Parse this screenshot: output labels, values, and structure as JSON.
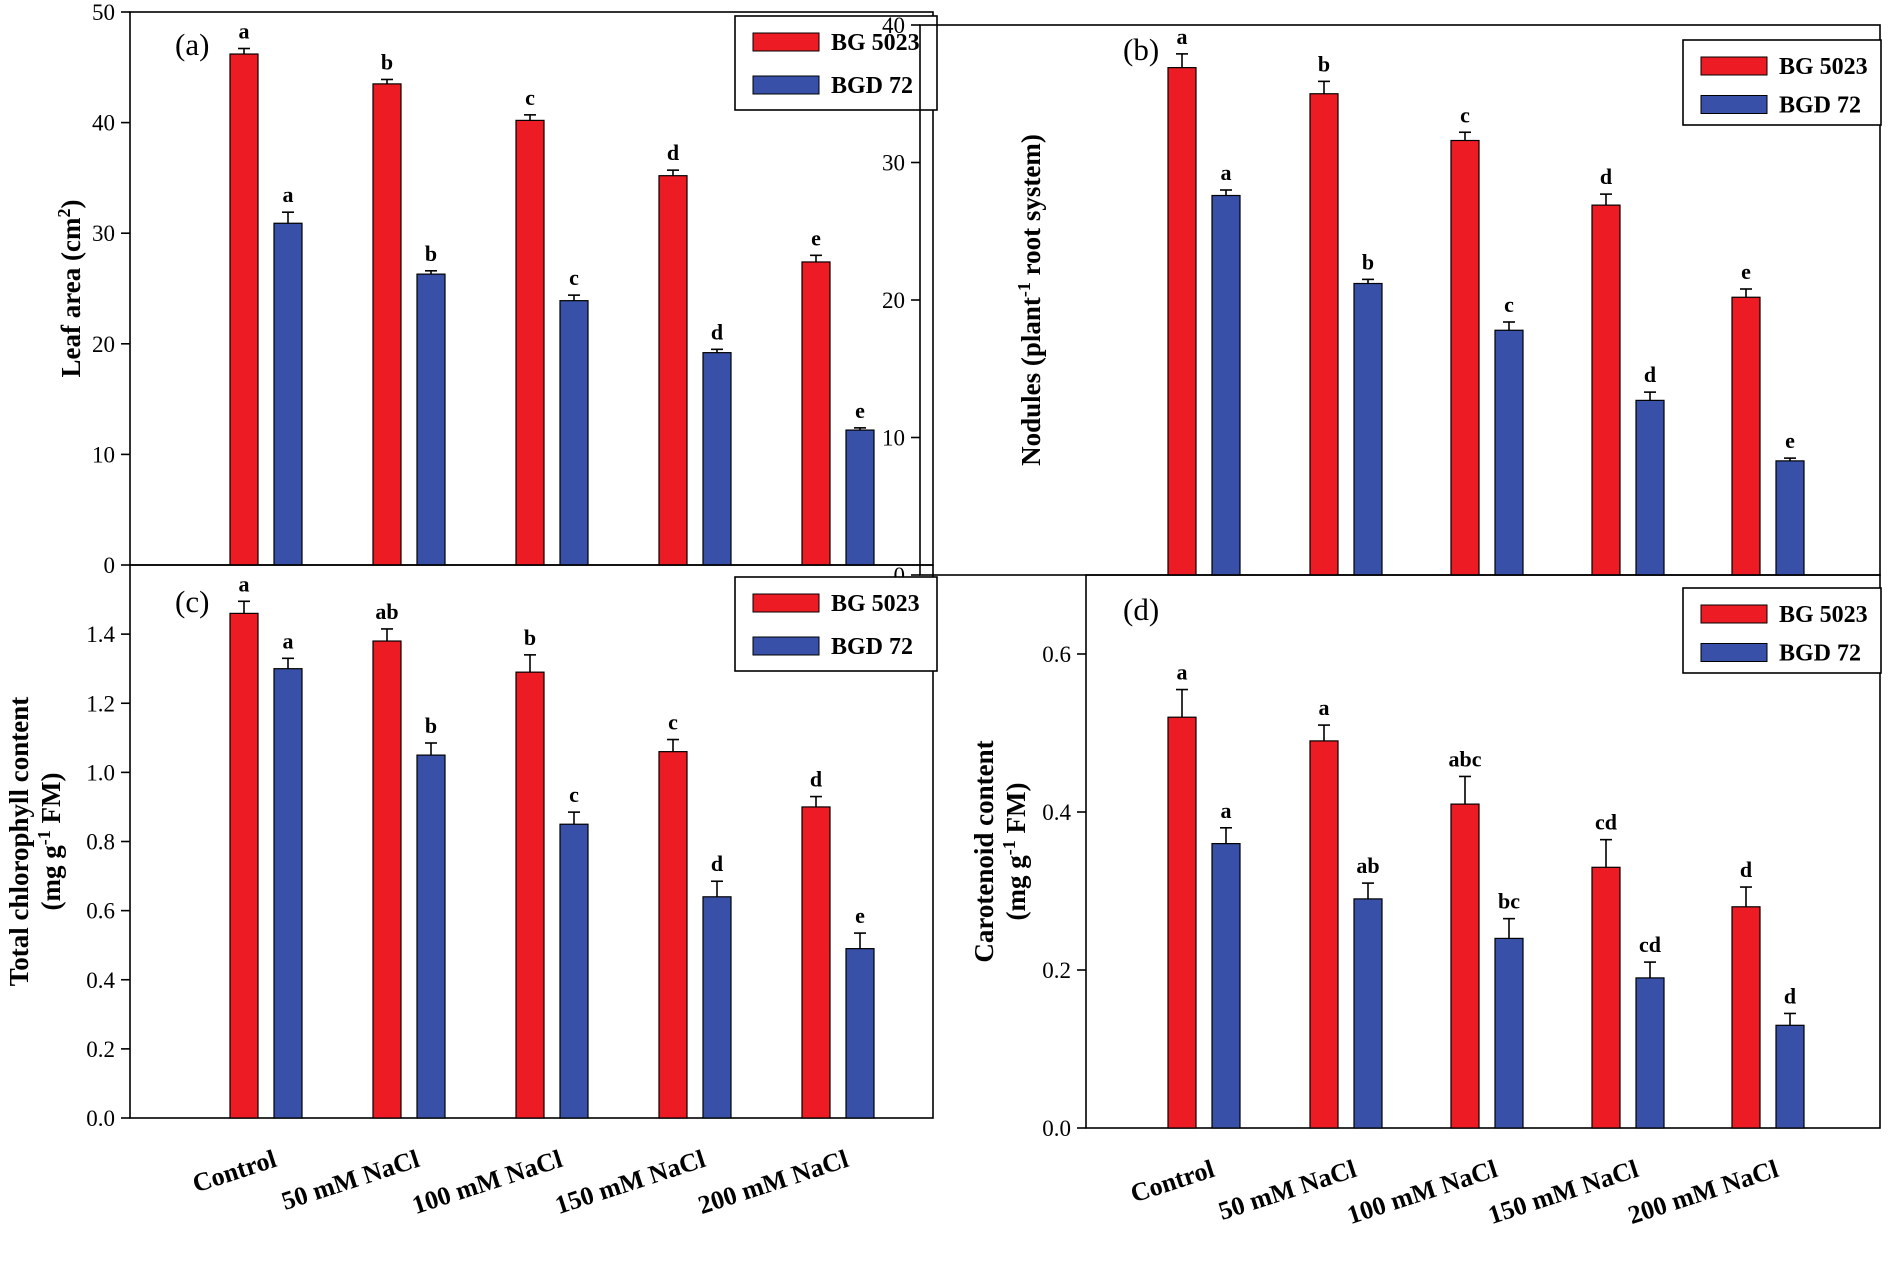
{
  "categories": [
    "Control",
    "50 mM NaCl",
    "100 mM NaCl",
    "150 mM NaCl",
    "200 mM NaCl"
  ],
  "legend": [
    "BG 5023",
    "BGD 72"
  ],
  "colors": {
    "series1": "#ed1c24",
    "series2": "#3850a8"
  },
  "chart_data": [
    {
      "type": "bar",
      "panel": "(a)",
      "ylabel": "Leaf area (cm",
      "ylabel_sup": "2",
      "ylabel_tail": ")",
      "ylim": [
        0,
        50
      ],
      "yticks": [
        0,
        10,
        20,
        30,
        40,
        50
      ],
      "ytick_labels": [
        "0",
        "10",
        "20",
        "30",
        "40",
        "50"
      ],
      "categories": [
        "Control",
        "50 mM NaCl",
        "100 mM NaCl",
        "150 mM NaCl",
        "200 mM NaCl"
      ],
      "series": [
        {
          "name": "BG 5023",
          "values": [
            46.2,
            43.5,
            40.2,
            35.2,
            27.4
          ],
          "errors": [
            0.5,
            0.4,
            0.5,
            0.5,
            0.6
          ],
          "letters": [
            "a",
            "b",
            "c",
            "d",
            "e"
          ]
        },
        {
          "name": "BGD 72",
          "values": [
            30.9,
            26.3,
            23.9,
            19.2,
            12.2
          ],
          "errors": [
            1.0,
            0.3,
            0.5,
            0.3,
            0.2
          ],
          "letters": [
            "a",
            "b",
            "c",
            "d",
            "e"
          ]
        }
      ]
    },
    {
      "type": "bar",
      "panel": "(b)",
      "ylabel": "Nodules (plant",
      "ylabel_sup": "-1",
      "ylabel_tail": " root system)",
      "ylim": [
        0,
        40
      ],
      "yticks": [
        0,
        10,
        20,
        30,
        40
      ],
      "ytick_labels": [
        "0",
        "10",
        "20",
        "30",
        "40"
      ],
      "categories": [
        "Control",
        "50 mM NaCl",
        "100 mM NaCl",
        "150 mM NaCl",
        "200 mM NaCl"
      ],
      "series": [
        {
          "name": "BG 5023",
          "values": [
            36.9,
            35.0,
            31.6,
            26.9,
            20.2
          ],
          "errors": [
            1.0,
            0.9,
            0.6,
            0.8,
            0.6
          ],
          "letters": [
            "a",
            "b",
            "c",
            "d",
            "e"
          ]
        },
        {
          "name": "BGD 72",
          "values": [
            27.6,
            21.2,
            17.8,
            12.7,
            8.3
          ],
          "errors": [
            0.4,
            0.3,
            0.6,
            0.6,
            0.2
          ],
          "letters": [
            "a",
            "b",
            "c",
            "d",
            "e"
          ]
        }
      ]
    },
    {
      "type": "bar",
      "panel": "(c)",
      "ylabel": "Total chlorophyll content",
      "ylabel2": "(mg g",
      "ylabel2_sup": "-1",
      "ylabel2_tail": " FM)",
      "ylim": [
        0,
        1.6
      ],
      "yticks": [
        0,
        0.2,
        0.4,
        0.6,
        0.8,
        1.0,
        1.2,
        1.4
      ],
      "ytick_labels": [
        "0.0",
        "0.2",
        "0.4",
        "0.6",
        "0.8",
        "1.0",
        "1.2",
        "1.4"
      ],
      "categories": [
        "Control",
        "50 mM NaCl",
        "100 mM NaCl",
        "150 mM NaCl",
        "200 mM NaCl"
      ],
      "series": [
        {
          "name": "BG 5023",
          "values": [
            1.46,
            1.38,
            1.29,
            1.06,
            0.9
          ],
          "errors": [
            0.035,
            0.035,
            0.05,
            0.035,
            0.03
          ],
          "letters": [
            "a",
            "ab",
            "b",
            "c",
            "d"
          ]
        },
        {
          "name": "BGD 72",
          "values": [
            1.3,
            1.05,
            0.85,
            0.64,
            0.49
          ],
          "errors": [
            0.03,
            0.035,
            0.035,
            0.045,
            0.045
          ],
          "letters": [
            "a",
            "b",
            "c",
            "d",
            "e"
          ]
        }
      ]
    },
    {
      "type": "bar",
      "panel": "(d)",
      "ylabel": "Carotenoid content",
      "ylabel2": "(mg g",
      "ylabel2_sup": "-1",
      "ylabel2_tail": " FM)",
      "ylim": [
        0,
        0.7
      ],
      "yticks": [
        0,
        0.2,
        0.4,
        0.6
      ],
      "ytick_labels": [
        "0.0",
        "0.2",
        "0.4",
        "0.6"
      ],
      "categories": [
        "Control",
        "50 mM NaCl",
        "100 mM NaCl",
        "150 mM NaCl",
        "200 mM NaCl"
      ],
      "series": [
        {
          "name": "BG 5023",
          "values": [
            0.52,
            0.49,
            0.41,
            0.33,
            0.28
          ],
          "errors": [
            0.035,
            0.02,
            0.035,
            0.035,
            0.025
          ],
          "letters": [
            "a",
            "a",
            "abc",
            "cd",
            "d"
          ]
        },
        {
          "name": "BGD 72",
          "values": [
            0.36,
            0.29,
            0.24,
            0.19,
            0.13
          ],
          "errors": [
            0.02,
            0.02,
            0.025,
            0.02,
            0.015
          ],
          "letters": [
            "a",
            "ab",
            "bc",
            "cd",
            "d"
          ]
        }
      ]
    }
  ]
}
